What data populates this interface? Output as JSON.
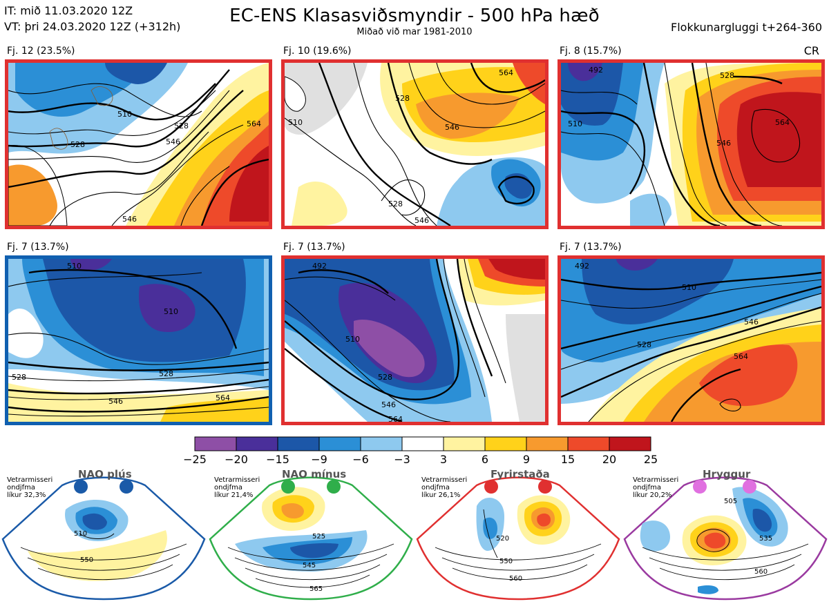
{
  "header": {
    "it_line": "IT: mið 11.03.2020 12Z",
    "vt_line": "VT: þri 24.03.2020 12Z  (+312h)",
    "title": "EC-ENS Klasasviðsmyndir - 500 hPa hæð",
    "subtitle": "Miðað við mar 1981-2010",
    "window": "Flokkunargluggi t+264-360",
    "cr": "CR"
  },
  "panels": [
    {
      "label": "Fj. 12 (23.5%)",
      "frame_color": "#e03030",
      "contours": [
        "510",
        "528",
        "546",
        "564",
        "546",
        "528"
      ]
    },
    {
      "label": "Fj. 10 (19.6%)",
      "frame_color": "#e03030",
      "contours": [
        "528",
        "546",
        "510",
        "528",
        "546",
        "564"
      ]
    },
    {
      "label": "Fj. 8 (15.7%)",
      "frame_color": "#e03030",
      "contours": [
        "492",
        "510",
        "528",
        "546",
        "564"
      ]
    },
    {
      "label": "Fj. 7 (13.7%)",
      "frame_color": "#1060b0",
      "contours": [
        "510",
        "510",
        "528",
        "546",
        "564",
        "528"
      ]
    },
    {
      "label": "Fj. 7 (13.7%)",
      "frame_color": "#e03030",
      "contours": [
        "492",
        "510",
        "528",
        "546",
        "564"
      ]
    },
    {
      "label": "Fj. 7 (13.7%)",
      "frame_color": "#e03030",
      "contours": [
        "492",
        "510",
        "528",
        "546",
        "564"
      ]
    }
  ],
  "colorbar": {
    "ticks": [
      "−25",
      "−20",
      "−15",
      "−9",
      "−6",
      "−3",
      "3",
      "6",
      "9",
      "15",
      "20",
      "25"
    ],
    "colors": [
      "#8e4fa6",
      "#4a2f9a",
      "#1c57a8",
      "#2b8fd6",
      "#8ec9ef",
      "#ffffff",
      "#fff3a0",
      "#ffd21a",
      "#f79a2e",
      "#ee4a2a",
      "#c0151c"
    ]
  },
  "regimes": [
    {
      "title": "NAO plús",
      "info": [
        "Vetrarmisseri",
        "ondjfma",
        "líkur 32,3%"
      ],
      "color": "#1a5aa8",
      "contours": [
        "510",
        "550"
      ]
    },
    {
      "title": "NAO mínus",
      "info": [
        "Vetrarmisseri",
        "ondjfma",
        "líkur 21,4%"
      ],
      "color": "#2fae4a",
      "contours": [
        "525",
        "545",
        "565"
      ]
    },
    {
      "title": "Fyrirstaða",
      "info": [
        "Vetrarmisseri",
        "ondjfma",
        "líkur 26,1%"
      ],
      "color": "#e03030",
      "contours": [
        "520",
        "550",
        "560"
      ]
    },
    {
      "title": "Hryggur",
      "info": [
        "Vetrarmisseri",
        "ondjfma",
        "líkur 20,2%"
      ],
      "color": "#e070e0",
      "contours": [
        "505",
        "535",
        "560"
      ]
    }
  ]
}
